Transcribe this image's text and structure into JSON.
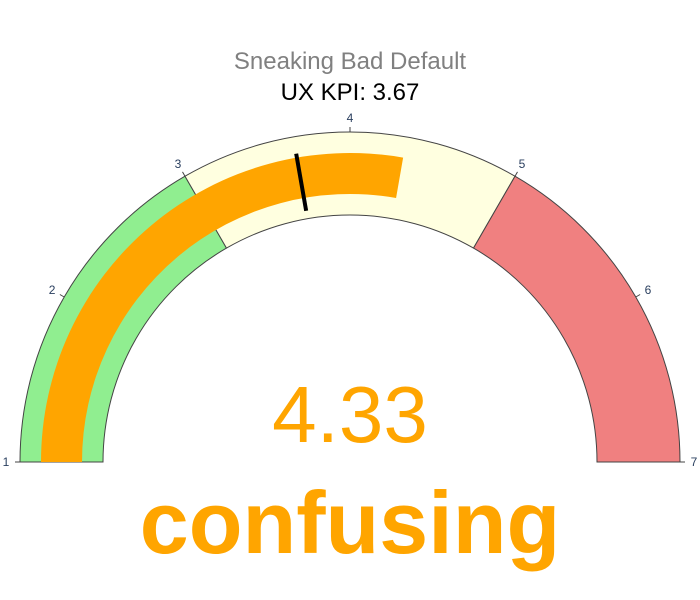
{
  "chart_data": {
    "type": "gauge",
    "title": "Sneaking Bad Default",
    "subtitle": "UX KPI: 3.67",
    "value": 4.33,
    "value_label": "4.33",
    "rating_label": "confusing",
    "threshold": 3.67,
    "axis_range": [
      1,
      7
    ],
    "ticks": [
      1,
      2,
      3,
      4,
      5,
      6,
      7
    ],
    "tick_labels": [
      "1",
      "2",
      "3",
      "4",
      "5",
      "6",
      "7"
    ],
    "steps": [
      {
        "range": [
          1,
          3
        ],
        "color": "#90ee90"
      },
      {
        "range": [
          3,
          5
        ],
        "color": "#ffffe0"
      },
      {
        "range": [
          5,
          7
        ],
        "color": "#f08080"
      }
    ],
    "bar_color": "#ffa500",
    "threshold_color": "#000000",
    "title_color": "#808080",
    "subtitle_color": "#000000",
    "value_color": "#ffa500",
    "rating_color": "#ffa500",
    "tick_color": "#2a3f5f"
  }
}
